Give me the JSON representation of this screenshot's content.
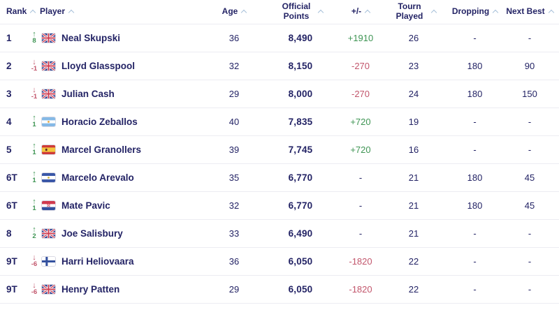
{
  "colors": {
    "text_navy": "#232365",
    "positive_green": "#3f9554",
    "negative_red": "#c2566c",
    "caret_blue": "#a7c0da",
    "divider": "#ececf2",
    "flag_border": "#d9d9e3"
  },
  "icons": {
    "sort_caret": "chevron-up",
    "up_arrow": "↑",
    "down_arrow": "↓"
  },
  "table": {
    "columns": [
      {
        "key": "rank",
        "label": "Rank",
        "sortable": true
      },
      {
        "key": "player",
        "label": "Player",
        "sortable": true
      },
      {
        "key": "age",
        "label": "Age",
        "sortable": true
      },
      {
        "key": "points",
        "label": "Official Points",
        "sortable": true
      },
      {
        "key": "pm",
        "label": "+/-",
        "sortable": true
      },
      {
        "key": "tourn",
        "label": "Tourn Played",
        "sortable": true
      },
      {
        "key": "drop",
        "label": "Dropping",
        "sortable": true
      },
      {
        "key": "next",
        "label": "Next Best",
        "sortable": true
      }
    ],
    "rows": [
      {
        "rank": "1",
        "movement": {
          "direction": "up",
          "value": "8"
        },
        "country": "GBR",
        "player": "Neal Skupski",
        "age": "36",
        "official_points": "8,490",
        "plus_minus": "+1910",
        "plus_minus_trend": "up",
        "tourn_played": "26",
        "dropping": "-",
        "next_best": "-"
      },
      {
        "rank": "2",
        "movement": {
          "direction": "down",
          "value": "-1"
        },
        "country": "GBR",
        "player": "Lloyd Glasspool",
        "age": "32",
        "official_points": "8,150",
        "plus_minus": "-270",
        "plus_minus_trend": "down",
        "tourn_played": "23",
        "dropping": "180",
        "next_best": "90"
      },
      {
        "rank": "3",
        "movement": {
          "direction": "down",
          "value": "-1"
        },
        "country": "GBR",
        "player": "Julian Cash",
        "age": "29",
        "official_points": "8,000",
        "plus_minus": "-270",
        "plus_minus_trend": "down",
        "tourn_played": "24",
        "dropping": "180",
        "next_best": "150"
      },
      {
        "rank": "4",
        "movement": {
          "direction": "up",
          "value": "1"
        },
        "country": "ARG",
        "player": "Horacio Zeballos",
        "age": "40",
        "official_points": "7,835",
        "plus_minus": "+720",
        "plus_minus_trend": "up",
        "tourn_played": "19",
        "dropping": "-",
        "next_best": "-"
      },
      {
        "rank": "5",
        "movement": {
          "direction": "up",
          "value": "1"
        },
        "country": "ESP",
        "player": "Marcel Granollers",
        "age": "39",
        "official_points": "7,745",
        "plus_minus": "+720",
        "plus_minus_trend": "up",
        "tourn_played": "16",
        "dropping": "-",
        "next_best": "-"
      },
      {
        "rank": "6T",
        "movement": {
          "direction": "up",
          "value": "1"
        },
        "country": "ESA",
        "player": "Marcelo Arevalo",
        "age": "35",
        "official_points": "6,770",
        "plus_minus": "-",
        "plus_minus_trend": "none",
        "tourn_played": "21",
        "dropping": "180",
        "next_best": "45"
      },
      {
        "rank": "6T",
        "movement": {
          "direction": "up",
          "value": "1"
        },
        "country": "CRO",
        "player": "Mate Pavic",
        "age": "32",
        "official_points": "6,770",
        "plus_minus": "-",
        "plus_minus_trend": "none",
        "tourn_played": "21",
        "dropping": "180",
        "next_best": "45"
      },
      {
        "rank": "8",
        "movement": {
          "direction": "up",
          "value": "2"
        },
        "country": "GBR",
        "player": "Joe Salisbury",
        "age": "33",
        "official_points": "6,490",
        "plus_minus": "-",
        "plus_minus_trend": "none",
        "tourn_played": "21",
        "dropping": "-",
        "next_best": "-"
      },
      {
        "rank": "9T",
        "movement": {
          "direction": "down",
          "value": "-6"
        },
        "country": "FIN",
        "player": "Harri Heliovaara",
        "age": "36",
        "official_points": "6,050",
        "plus_minus": "-1820",
        "plus_minus_trend": "down",
        "tourn_played": "22",
        "dropping": "-",
        "next_best": "-"
      },
      {
        "rank": "9T",
        "movement": {
          "direction": "down",
          "value": "-6"
        },
        "country": "GBR",
        "player": "Henry Patten",
        "age": "29",
        "official_points": "6,050",
        "plus_minus": "-1820",
        "plus_minus_trend": "down",
        "tourn_played": "22",
        "dropping": "-",
        "next_best": "-"
      }
    ]
  }
}
